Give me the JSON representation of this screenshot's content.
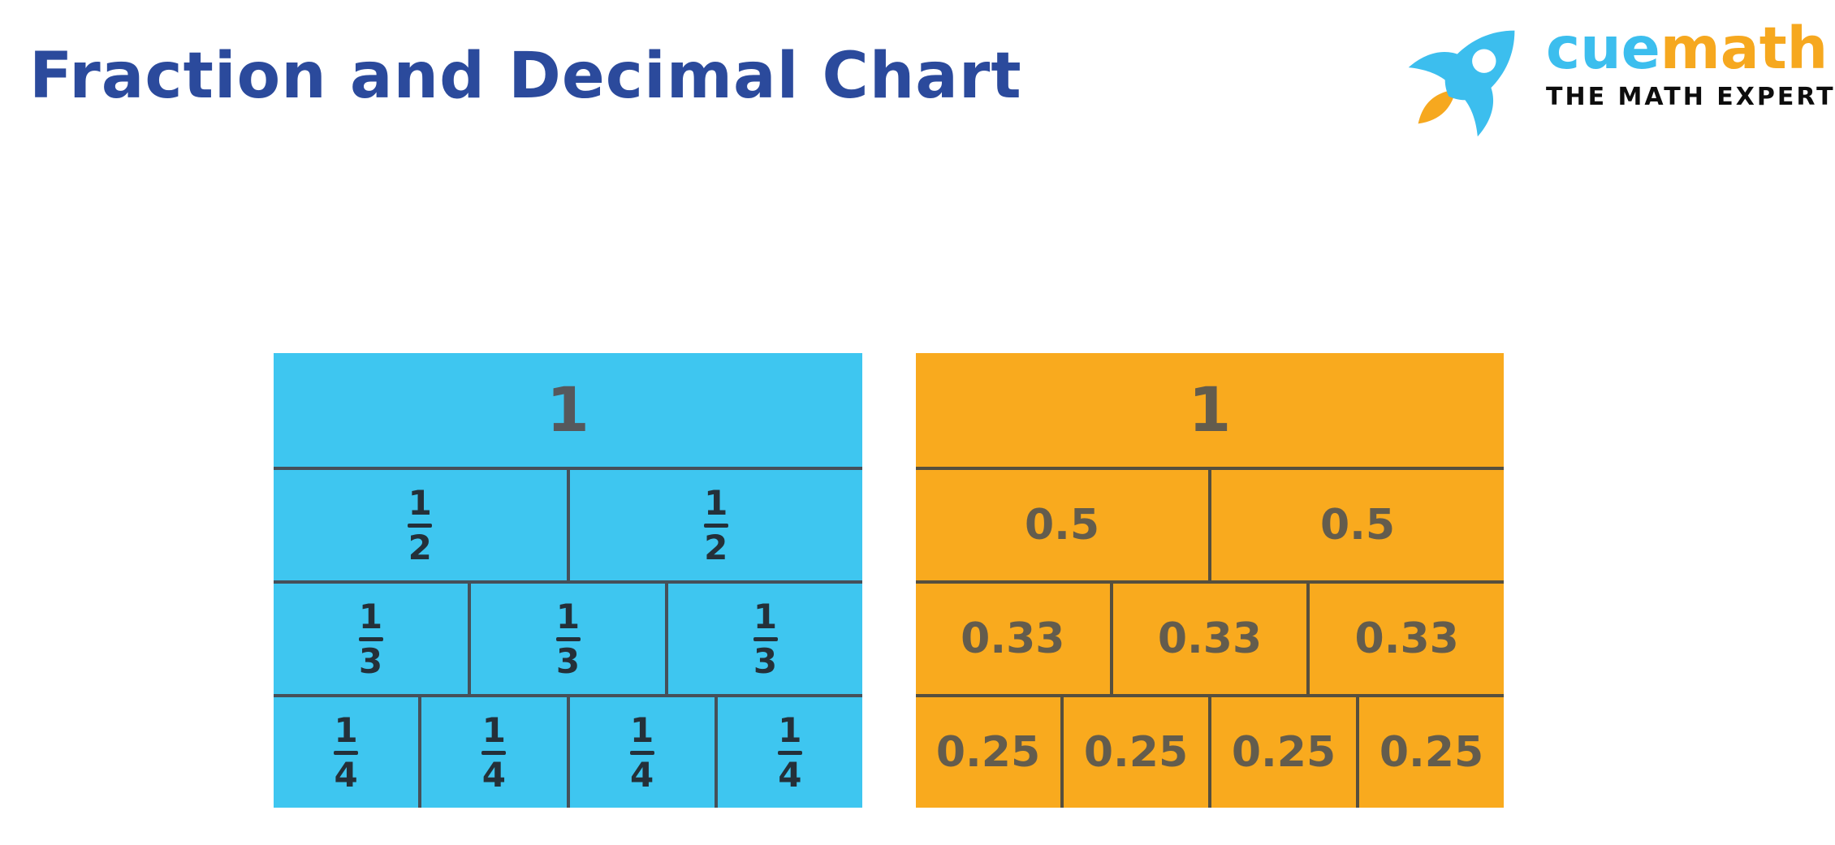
{
  "title": "Fraction and Decimal Chart",
  "title_color": "#2b4a9c",
  "logo": {
    "brand_cue": "cue",
    "brand_math": "math",
    "tagline": "THE MATH EXPERT",
    "cue_color": "#3cbeee",
    "math_color": "#f6a81f",
    "tagline_color": "#0d0d0d",
    "rocket_body_color": "#3cbeee",
    "rocket_flame_color": "#f6a81f"
  },
  "chart_data": [
    {
      "type": "table",
      "name": "fraction-strips",
      "fill": "#3ec6f0",
      "line_color": "#465059",
      "value_color": "#243039",
      "one_color": "#56585c",
      "rows": [
        [
          "1"
        ],
        [
          "1/2",
          "1/2"
        ],
        [
          "1/3",
          "1/3",
          "1/3"
        ],
        [
          "1/4",
          "1/4",
          "1/4",
          "1/4"
        ]
      ]
    },
    {
      "type": "table",
      "name": "decimal-strips",
      "fill": "#f9aa1e",
      "line_color": "#564f3e",
      "value_color": "#635c4d",
      "one_color": "#635c4d",
      "rows": [
        [
          "1"
        ],
        [
          "0.5",
          "0.5"
        ],
        [
          "0.33",
          "0.33",
          "0.33"
        ],
        [
          "0.25",
          "0.25",
          "0.25",
          "0.25"
        ]
      ]
    }
  ]
}
